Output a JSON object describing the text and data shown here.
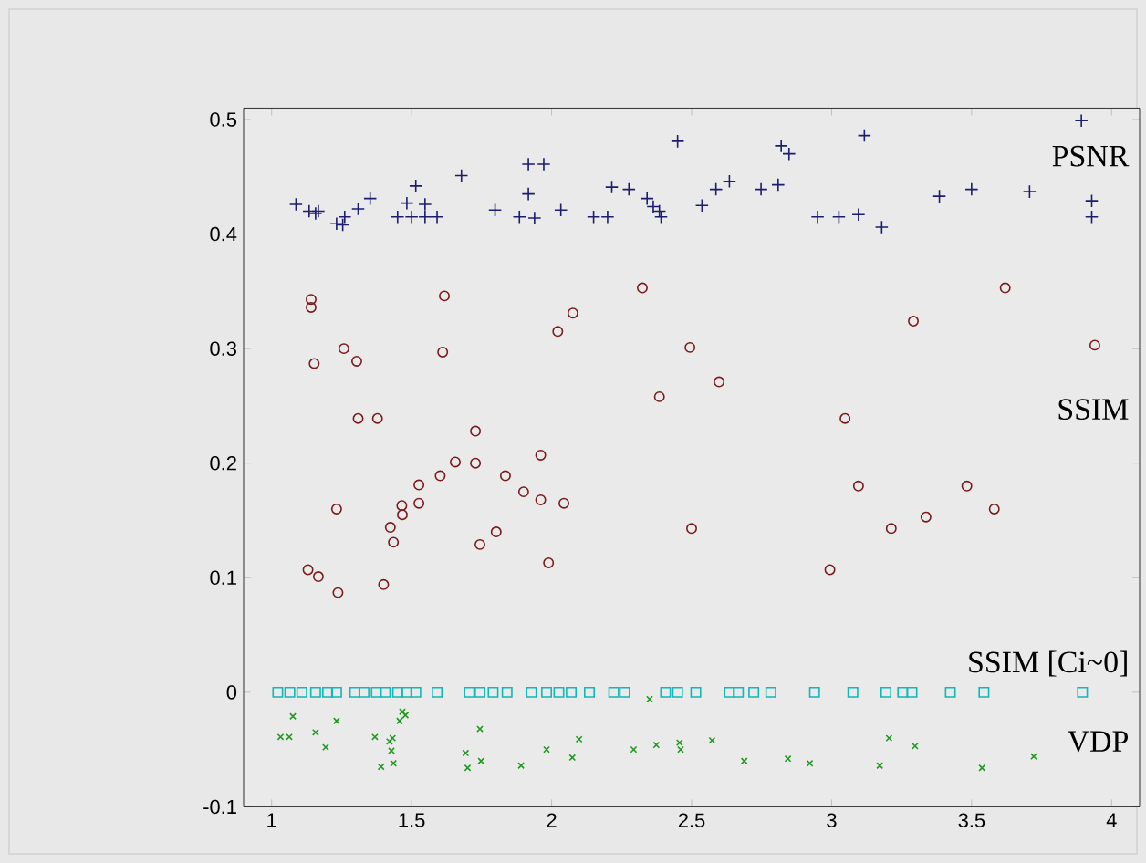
{
  "chart_data": {
    "type": "scatter",
    "xlim": [
      0.9,
      4.1
    ],
    "ylim": [
      -0.1,
      0.51
    ],
    "xticks": [
      1,
      1.5,
      2,
      2.5,
      3,
      3.5,
      4
    ],
    "yticks": [
      -0.1,
      0,
      0.1,
      0.2,
      0.3,
      0.4,
      0.5
    ],
    "series": [
      {
        "name": "PSNR",
        "color": "#1c1c70",
        "marker": "plus",
        "x": [
          1.087,
          1.134,
          1.157,
          1.167,
          1.232,
          1.254,
          1.261,
          1.309,
          1.352,
          1.45,
          1.483,
          1.515,
          1.5,
          1.548,
          1.548,
          1.591,
          1.678,
          1.798,
          1.885,
          1.917,
          1.917,
          1.939,
          1.972,
          2.033,
          2.15,
          2.2,
          2.215,
          2.276,
          2.341,
          2.363,
          2.385,
          2.391,
          2.45,
          2.537,
          2.587,
          2.635,
          2.748,
          2.809,
          2.82,
          2.848,
          2.95,
          3.026,
          3.096,
          3.179,
          3.117,
          3.385,
          3.5,
          3.707,
          3.892,
          3.929,
          3.929
        ],
        "values": [
          0.426,
          0.42,
          0.418,
          0.42,
          0.409,
          0.408,
          0.415,
          0.422,
          0.431,
          0.415,
          0.427,
          0.442,
          0.415,
          0.426,
          0.415,
          0.415,
          0.451,
          0.421,
          0.415,
          0.435,
          0.461,
          0.414,
          0.461,
          0.421,
          0.415,
          0.415,
          0.441,
          0.439,
          0.431,
          0.424,
          0.42,
          0.415,
          0.481,
          0.425,
          0.439,
          0.446,
          0.439,
          0.443,
          0.477,
          0.47,
          0.415,
          0.415,
          0.417,
          0.406,
          0.486,
          0.433,
          0.439,
          0.437,
          0.499,
          0.429,
          0.415
        ]
      },
      {
        "name": "SSIM",
        "color": "#7a1a1a",
        "marker": "circle",
        "x": [
          1.141,
          1.141,
          1.152,
          1.258,
          1.304,
          1.309,
          1.378,
          1.617,
          1.611,
          1.728,
          2.022,
          2.076,
          2.324,
          2.385,
          2.494,
          2.598,
          3.048,
          3.292,
          3.62,
          3.94,
          1.13,
          1.167,
          1.237,
          1.232,
          1.4,
          1.424,
          1.435,
          1.467,
          1.465,
          1.526,
          1.526,
          1.602,
          1.656,
          1.728,
          1.744,
          1.802,
          1.835,
          1.9,
          1.961,
          1.961,
          2.044,
          1.989,
          2.5,
          3.096,
          2.994,
          3.213,
          3.337,
          3.483,
          3.581
        ],
        "values": [
          0.343,
          0.336,
          0.287,
          0.3,
          0.289,
          0.239,
          0.239,
          0.346,
          0.297,
          0.228,
          0.315,
          0.331,
          0.353,
          0.258,
          0.301,
          0.271,
          0.239,
          0.324,
          0.353,
          0.303,
          0.107,
          0.101,
          0.087,
          0.16,
          0.094,
          0.144,
          0.131,
          0.155,
          0.163,
          0.165,
          0.181,
          0.189,
          0.201,
          0.2,
          0.129,
          0.14,
          0.189,
          0.175,
          0.207,
          0.168,
          0.165,
          0.113,
          0.143,
          0.18,
          0.107,
          0.143,
          0.153,
          0.18,
          0.16
        ]
      },
      {
        "name": "SSIM [Ci~0]",
        "color": "#10b8b8",
        "marker": "square",
        "x": [
          1.022,
          1.065,
          1.108,
          1.157,
          1.2,
          1.232,
          1.297,
          1.33,
          1.374,
          1.406,
          1.45,
          1.483,
          1.515,
          1.591,
          1.706,
          1.744,
          1.791,
          1.841,
          1.928,
          1.982,
          2.026,
          2.07,
          2.135,
          2.222,
          2.261,
          2.407,
          2.45,
          2.515,
          2.635,
          2.667,
          2.722,
          2.783,
          2.939,
          3.076,
          3.194,
          3.254,
          3.287,
          3.424,
          3.544,
          3.896
        ],
        "values": [
          0,
          0,
          0,
          0,
          0,
          0,
          0,
          0,
          0,
          0,
          0,
          0,
          0,
          0,
          0,
          0,
          0,
          0,
          0,
          0,
          0,
          0,
          0,
          0,
          0,
          0,
          0,
          0,
          0,
          0,
          0,
          0,
          0,
          0,
          0,
          0,
          0,
          0,
          0,
          0
        ]
      },
      {
        "name": "VDP",
        "color": "#1f9a1f",
        "marker": "cross",
        "x": [
          1.032,
          1.063,
          1.076,
          1.157,
          1.193,
          1.232,
          1.369,
          1.391,
          1.421,
          1.428,
          1.435,
          1.432,
          1.457,
          1.467,
          1.478,
          1.693,
          1.7,
          1.744,
          1.748,
          1.891,
          1.982,
          2.074,
          2.098,
          2.293,
          2.35,
          2.374,
          2.457,
          2.461,
          2.573,
          2.688,
          2.844,
          2.922,
          3.172,
          3.205,
          3.298,
          3.537,
          3.722
        ],
        "values": [
          -0.039,
          -0.039,
          -0.021,
          -0.035,
          -0.048,
          -0.025,
          -0.039,
          -0.065,
          -0.043,
          -0.051,
          -0.062,
          -0.04,
          -0.025,
          -0.017,
          -0.02,
          -0.053,
          -0.066,
          -0.032,
          -0.06,
          -0.064,
          -0.05,
          -0.057,
          -0.041,
          -0.05,
          -0.006,
          -0.046,
          -0.044,
          -0.05,
          -0.042,
          -0.06,
          -0.058,
          -0.062,
          -0.064,
          -0.04,
          -0.047,
          -0.066,
          -0.056
        ]
      }
    ]
  }
}
